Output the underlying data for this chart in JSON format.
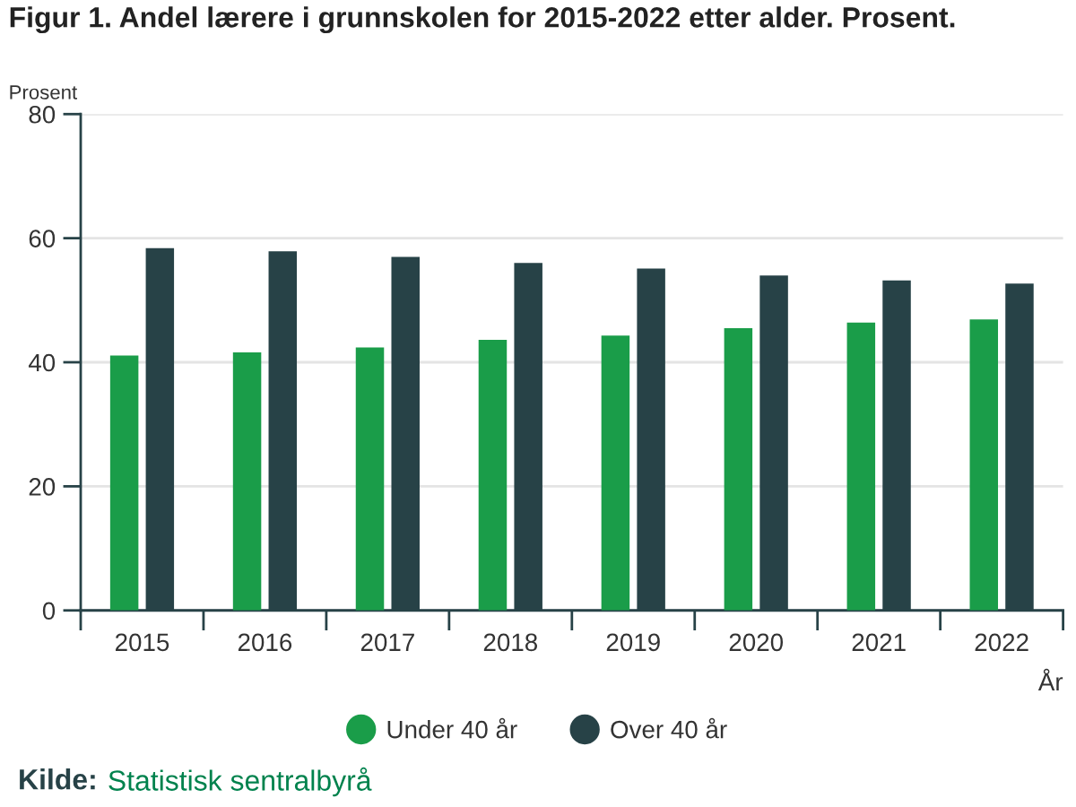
{
  "chart_data": {
    "type": "bar",
    "title": "Figur 1. Andel lærere i grunnskolen for 2015-2022 etter alder. Prosent.",
    "ylabel": "Prosent",
    "xlabel": "År",
    "categories": [
      "2015",
      "2016",
      "2017",
      "2018",
      "2019",
      "2020",
      "2021",
      "2022"
    ],
    "series": [
      {
        "name": "Under 40 år",
        "color": "#1a9d49",
        "values": [
          41.1,
          41.6,
          42.4,
          43.6,
          44.3,
          45.5,
          46.4,
          46.9
        ]
      },
      {
        "name": "Over 40 år",
        "color": "#274247",
        "values": [
          58.4,
          57.9,
          57.0,
          56.0,
          55.1,
          54.0,
          53.2,
          52.7
        ]
      }
    ],
    "ylim": [
      0,
      80
    ],
    "yticks": [
      0,
      20,
      40,
      60,
      80
    ],
    "grid": "y",
    "legend": "bottom",
    "annotations": [
      "Kilde:",
      "Statistisk sentralbyrå"
    ]
  }
}
